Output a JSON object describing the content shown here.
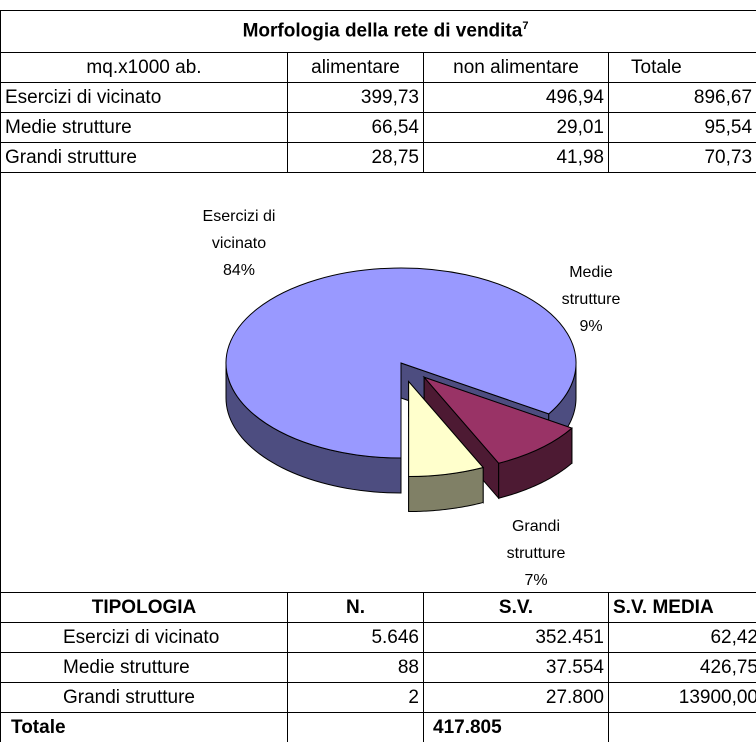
{
  "table1": {
    "title": "Morfologia della rete di vendita",
    "footnote": "7",
    "header": [
      "mq.x1000 ab.",
      "alimentare",
      "non alimentare",
      "Totale"
    ],
    "rows": [
      [
        "Esercizi di vicinato",
        "399,73",
        "496,94",
        "896,67"
      ],
      [
        "Medie strutture",
        "66,54",
        "29,01",
        "95,54"
      ],
      [
        "Grandi strutture",
        "28,75",
        "41,98",
        "70,73"
      ]
    ]
  },
  "chart_data": {
    "type": "pie",
    "categories": [
      "Esercizi di vicinato",
      "Medie strutture",
      "Grandi strutture"
    ],
    "values": [
      84,
      9,
      7
    ],
    "value_labels": [
      "84%",
      "9%",
      "7%"
    ],
    "colors": [
      "#9999ff",
      "#993366",
      "#ffffcc"
    ]
  },
  "table2": {
    "header": [
      "TIPOLOGIA",
      "N.",
      "S.V.",
      "S.V. MEDIA"
    ],
    "rows": [
      [
        "Esercizi di vicinato",
        "5.646",
        "352.451",
        "62,42"
      ],
      [
        "Medie strutture",
        "88",
        "37.554",
        "426,75"
      ],
      [
        "Grandi strutture",
        "2",
        "27.800",
        "13900,00"
      ]
    ],
    "total": {
      "label": "Totale",
      "sv": "417.805"
    }
  }
}
